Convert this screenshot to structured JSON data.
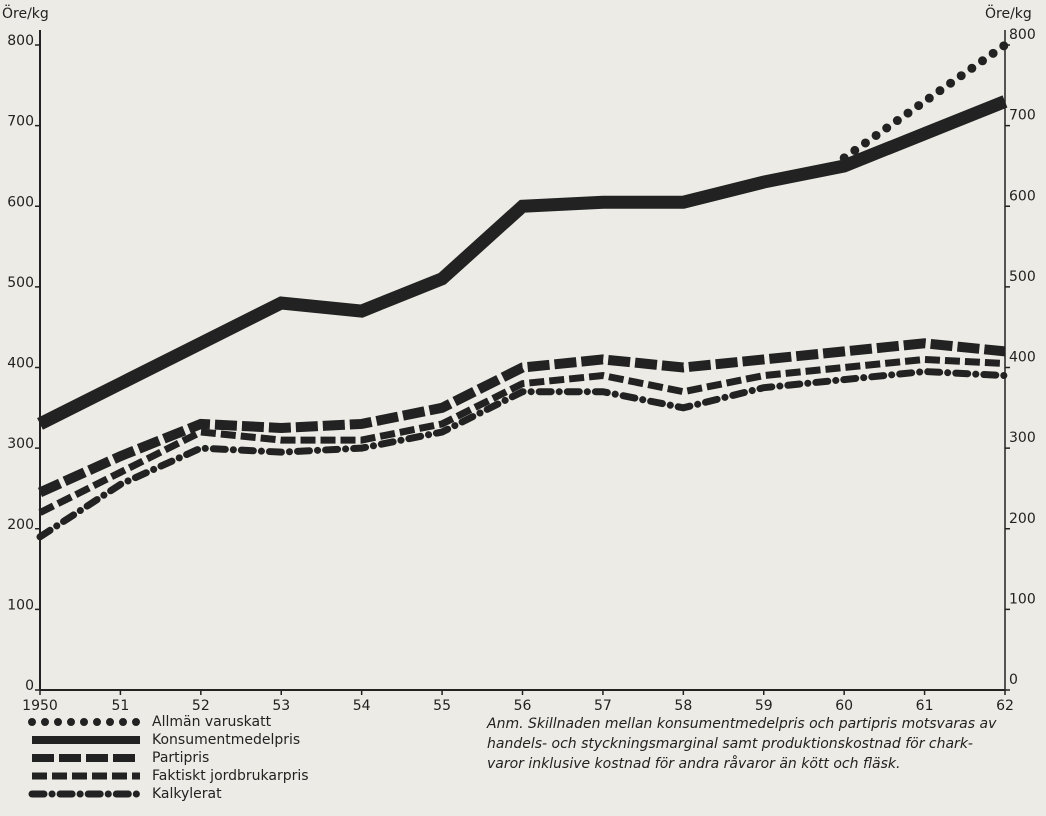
{
  "chart_data": {
    "type": "line",
    "y_label": "Öre/kg",
    "y2_label": "Öre/kg",
    "categories": [
      "1950",
      "51",
      "52",
      "53",
      "54",
      "55",
      "56",
      "57",
      "58",
      "59",
      "60",
      "61",
      "62"
    ],
    "ylim": [
      0,
      800
    ],
    "yticks": [
      0,
      100,
      200,
      300,
      400,
      500,
      600,
      700,
      800
    ],
    "y2lim": [
      0,
      800
    ],
    "y2ticks": [
      0,
      100,
      200,
      300,
      400,
      500,
      600,
      700,
      800
    ],
    "series": [
      {
        "name": "Allmän varuskatt",
        "color": "#222222",
        "line_style": "dotted",
        "values": [
          null,
          null,
          null,
          null,
          null,
          null,
          null,
          null,
          null,
          null,
          660,
          730,
          800
        ]
      },
      {
        "name": "Konsumentmedelpris",
        "color": "#222222",
        "line_style": "thick",
        "values": [
          330,
          380,
          430,
          480,
          470,
          510,
          600,
          605,
          605,
          630,
          650,
          690,
          730
        ]
      },
      {
        "name": "Partipris",
        "color": "#222222",
        "line_style": "dashed-thick",
        "values": [
          245,
          290,
          330,
          325,
          330,
          350,
          400,
          410,
          400,
          410,
          420,
          430,
          420
        ]
      },
      {
        "name": "Faktiskt jordbrukarpris",
        "color": "#222222",
        "line_style": "dashed",
        "values": [
          220,
          270,
          320,
          310,
          310,
          330,
          380,
          390,
          370,
          390,
          400,
          410,
          405
        ]
      },
      {
        "name": "Kalkylerat",
        "color": "#222222",
        "line_style": "dash-dot",
        "values": [
          190,
          255,
          300,
          295,
          300,
          320,
          370,
          370,
          350,
          375,
          385,
          395,
          390
        ]
      }
    ],
    "note": [
      "Anm. Skillnaden mellan konsumentmedelpris och partipris motsvaras av",
      "handels- och styckningsmarginal samt produktionskostnad för chark-",
      "varor inklusive kostnad för andra råvaror än kött och fläsk."
    ]
  }
}
